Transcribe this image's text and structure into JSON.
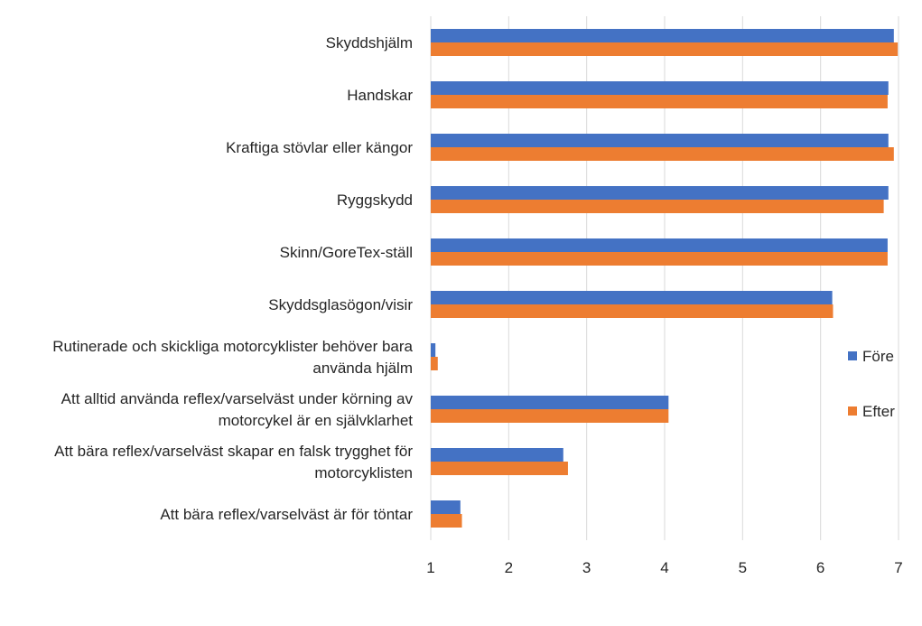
{
  "chart_data": {
    "type": "bar",
    "orientation": "horizontal",
    "title": "",
    "xlabel": "",
    "ylabel": "",
    "xlim": [
      1,
      7
    ],
    "x_ticks": [
      "1",
      "2",
      "3",
      "4",
      "5",
      "6",
      "7"
    ],
    "grid": "vertical",
    "legend_position": "right",
    "categories": [
      [
        "Skyddshjälm"
      ],
      [
        "Handskar"
      ],
      [
        "Kraftiga stövlar eller kängor"
      ],
      [
        "Ryggskydd"
      ],
      [
        "Skinn/GoreTex-ställ"
      ],
      [
        "Skyddsglasögon/visir"
      ],
      [
        "Rutinerade och skickliga motorcyklister behöver bara",
        "använda hjälm"
      ],
      [
        "Att alltid använda reflex/varselväst under körning av",
        "motorcykel är en självklarhet"
      ],
      [
        "Att bära reflex/varselväst skapar en falsk trygghet för",
        "motorcyklisten"
      ],
      [
        "Att bära reflex/varselväst är för töntar"
      ]
    ],
    "series": [
      {
        "name": "Före",
        "color": "#4472c4",
        "values": [
          6.94,
          6.87,
          6.87,
          6.87,
          6.86,
          6.15,
          1.06,
          4.05,
          2.7,
          1.38
        ]
      },
      {
        "name": "Efter",
        "color": "#ed7d31",
        "values": [
          6.99,
          6.86,
          6.94,
          6.81,
          6.86,
          6.16,
          1.09,
          4.05,
          2.76,
          1.4
        ]
      }
    ]
  }
}
